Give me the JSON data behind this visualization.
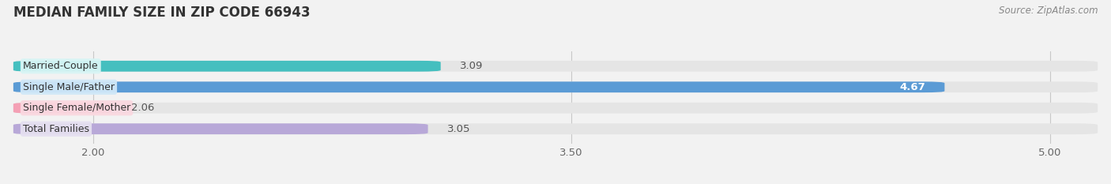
{
  "title": "MEDIAN FAMILY SIZE IN ZIP CODE 66943",
  "source": "Source: ZipAtlas.com",
  "categories": [
    "Married-Couple",
    "Single Male/Father",
    "Single Female/Mother",
    "Total Families"
  ],
  "values": [
    3.09,
    4.67,
    2.06,
    3.05
  ],
  "bar_colors": [
    "#45BFBF",
    "#5B9BD5",
    "#F4A0B5",
    "#B8A8D8"
  ],
  "label_bg_colors": [
    "#D8F5F5",
    "#D0E8F8",
    "#FAD8E0",
    "#E5DFF0"
  ],
  "xlim_min": 1.75,
  "xlim_max": 5.15,
  "xticks": [
    2.0,
    3.5,
    5.0
  ],
  "background_color": "#F2F2F2",
  "bar_background_color": "#E5E5E5",
  "value_label_inside": [
    false,
    true,
    false,
    false
  ],
  "value_label_color_inside": "#FFFFFF",
  "value_label_color_outside": "#555555",
  "title_fontsize": 12,
  "tick_fontsize": 9.5,
  "source_fontsize": 8.5,
  "label_fontsize": 9,
  "bar_height": 0.52,
  "bar_gap": 0.48
}
